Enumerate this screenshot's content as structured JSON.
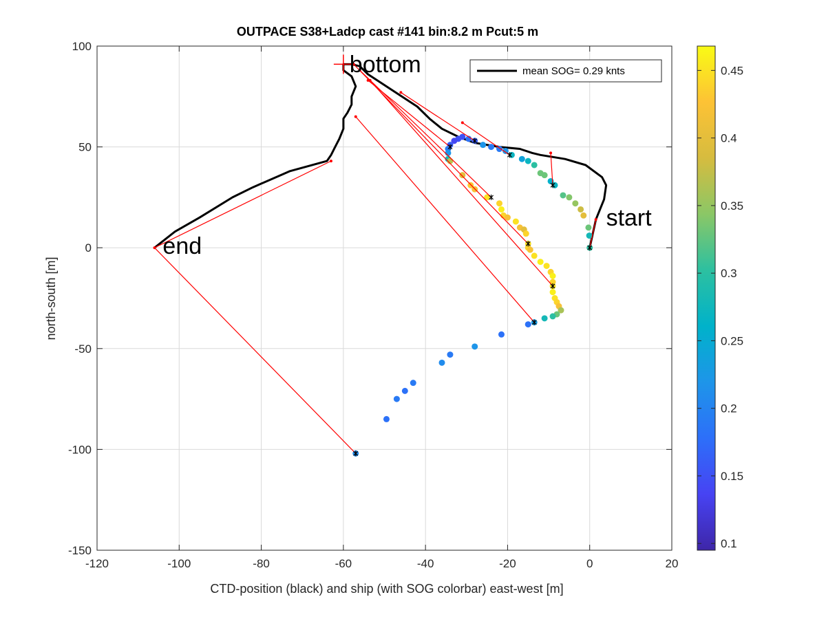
{
  "chart_data": {
    "type": "scatter",
    "title": "OUTPACE S38+Ladcp cast #141 bin:8.2 m  Pcut:5 m",
    "xlabel": "CTD-position (black) and ship (with SOG colorbar) east-west [m]",
    "ylabel": "north-south [m]",
    "xlim": [
      -120,
      20
    ],
    "ylim": [
      -150,
      100
    ],
    "xticks": [
      -120,
      -100,
      -80,
      -60,
      -40,
      -20,
      0,
      20
    ],
    "yticks": [
      -150,
      -100,
      -50,
      0,
      50,
      100
    ],
    "grid": true,
    "legend": {
      "position": "top-right",
      "entries": [
        "mean SOG=  0.29 knts"
      ]
    },
    "annotations": [
      {
        "text": "start",
        "x": 4,
        "y": 11
      },
      {
        "text": "end",
        "x": -104,
        "y": -3
      },
      {
        "text": "bottom",
        "x": -58.5,
        "y": 87
      }
    ],
    "colorbar": {
      "range": [
        0.095,
        0.468
      ],
      "ticks": [
        0.1,
        0.15,
        0.2,
        0.25,
        0.3,
        0.35,
        0.4,
        0.45
      ],
      "tick_labels": [
        "0.1",
        "0.15",
        "0.2",
        "0.25",
        "0.3",
        "0.35",
        "0.4",
        "0.45"
      ],
      "colormap": [
        "#3e26a8",
        "#4743f3",
        "#2d6ff9",
        "#1e95e9",
        "#00b2ca",
        "#2dc0a0",
        "#8bc766",
        "#d6bc3f",
        "#fdc235",
        "#f9fb15"
      ]
    },
    "series": [
      {
        "name": "mean SOG=  0.29 knts",
        "type": "line",
        "color": "#000000",
        "x": [
          0,
          1.5,
          3.5,
          4,
          3,
          -1,
          -6,
          -12,
          -14,
          -17,
          -22,
          -28,
          -32,
          -36,
          -39,
          -42,
          -45,
          -48,
          -51,
          -54,
          -56,
          -58,
          -60,
          -60,
          -58,
          -57,
          -58,
          -58,
          -59,
          -60,
          -60,
          -61,
          -62,
          -63,
          -64,
          -73,
          -82,
          -87,
          -95,
          -101,
          -106
        ],
        "y": [
          0,
          14,
          24,
          31,
          35,
          41,
          44,
          46,
          47,
          49,
          50,
          52,
          55,
          59,
          64,
          70,
          74,
          78,
          82,
          86,
          90,
          91,
          91,
          88,
          85,
          80,
          75,
          71,
          67,
          64,
          59,
          54,
          50,
          46,
          43,
          38,
          30,
          25,
          15,
          8,
          0
        ]
      },
      {
        "name": "ship SOG",
        "type": "scatter",
        "points": [
          [
            0,
            0,
            0.3
          ],
          [
            -0.1,
            6,
            0.28
          ],
          [
            -0.3,
            10,
            0.33
          ],
          [
            -1.5,
            16,
            0.4
          ],
          [
            -2.2,
            19,
            0.38
          ],
          [
            -3.5,
            22,
            0.35
          ],
          [
            -5,
            25,
            0.34
          ],
          [
            -6.5,
            26,
            0.32
          ],
          [
            -8.5,
            31,
            0.27
          ],
          [
            -9.5,
            33,
            0.26
          ],
          [
            -11,
            36,
            0.33
          ],
          [
            -12,
            37,
            0.33
          ],
          [
            -13.5,
            41,
            0.3
          ],
          [
            -15,
            43,
            0.27
          ],
          [
            -16.5,
            44,
            0.24
          ],
          [
            -19,
            46,
            0.27
          ],
          [
            -20.5,
            48,
            0.22
          ],
          [
            -22,
            49,
            0.19
          ],
          [
            -24,
            50,
            0.19
          ],
          [
            -26,
            51,
            0.22
          ],
          [
            -28,
            53,
            0.16
          ],
          [
            -29.5,
            54,
            0.18
          ],
          [
            -31,
            55,
            0.15
          ],
          [
            -32,
            54,
            0.15
          ],
          [
            -33,
            53,
            0.14
          ],
          [
            -34,
            51,
            0.16
          ],
          [
            -34.5,
            49,
            0.19
          ],
          [
            -34.5,
            47,
            0.22
          ],
          [
            -34.5,
            44,
            0.28
          ],
          [
            -34,
            43,
            0.37
          ],
          [
            -31,
            36,
            0.4
          ],
          [
            -29,
            31,
            0.43
          ],
          [
            -28,
            29,
            0.42
          ],
          [
            -25,
            25,
            0.45
          ],
          [
            -22,
            22,
            0.44
          ],
          [
            -21.5,
            19,
            0.46
          ],
          [
            -21,
            16,
            0.44
          ],
          [
            -20,
            15,
            0.42
          ],
          [
            -18,
            13,
            0.45
          ],
          [
            -17,
            10,
            0.42
          ],
          [
            -16,
            9,
            0.4
          ],
          [
            -15.5,
            7,
            0.44
          ],
          [
            -15,
            2,
            0.45
          ],
          [
            -15,
            0,
            0.44
          ],
          [
            -14.5,
            -1,
            0.42
          ],
          [
            -13.5,
            -4,
            0.45
          ],
          [
            -12,
            -7,
            0.46
          ],
          [
            -10.5,
            -9,
            0.45
          ],
          [
            -9.5,
            -12,
            0.44
          ],
          [
            -9,
            -14,
            0.46
          ],
          [
            -9,
            -17,
            0.44
          ],
          [
            -9,
            -19,
            0.45
          ],
          [
            -9,
            -22,
            0.46
          ],
          [
            -8.5,
            -25,
            0.45
          ],
          [
            -8,
            -27,
            0.44
          ],
          [
            -7.5,
            -29,
            0.42
          ],
          [
            -7,
            -31,
            0.36
          ],
          [
            -8,
            -33,
            0.33
          ],
          [
            -9,
            -34,
            0.3
          ],
          [
            -11,
            -35,
            0.28
          ],
          [
            -13.5,
            -37,
            0.23
          ],
          [
            -15,
            -38,
            0.18
          ],
          [
            -21.5,
            -43,
            0.18
          ],
          [
            -28,
            -49,
            0.22
          ],
          [
            -34,
            -53,
            0.19
          ],
          [
            -36,
            -57,
            0.21
          ],
          [
            -43,
            -67,
            0.19
          ],
          [
            -45,
            -71,
            0.18
          ],
          [
            -47,
            -75,
            0.19
          ],
          [
            -49.5,
            -85,
            0.18
          ],
          [
            -57,
            -102,
            0.21
          ]
        ]
      },
      {
        "name": "ship-to-CTD connectors",
        "type": "segments",
        "color": "#ff0000",
        "segments": [
          [
            [
              0,
              0
            ],
            [
              1.5,
              14
            ]
          ],
          [
            [
              -9,
              31
            ],
            [
              -9.5,
              47
            ]
          ],
          [
            [
              -19.5,
              46
            ],
            [
              -31,
              62
            ]
          ],
          [
            [
              -28,
              53
            ],
            [
              -46,
              77
            ]
          ],
          [
            [
              -34,
              50
            ],
            [
              -54,
              83
            ]
          ],
          [
            [
              -24,
              25
            ],
            [
              -56,
              88
            ]
          ],
          [
            [
              -15,
              2
            ],
            [
              -57.5,
              91
            ]
          ],
          [
            [
              -9,
              -19
            ],
            [
              -53.5,
              83
            ]
          ],
          [
            [
              -13.5,
              -37
            ],
            [
              -57,
              65
            ]
          ],
          [
            [
              -57,
              -102
            ],
            [
              -106,
              0
            ]
          ],
          [
            [
              -106,
              0
            ],
            [
              -63,
              43
            ]
          ]
        ]
      },
      {
        "name": "CTD sample markers",
        "type": "scatter",
        "color": "#ff0000",
        "points": [
          [
            1.5,
            14
          ],
          [
            -9.5,
            47
          ],
          [
            -31,
            62
          ],
          [
            -46,
            77
          ],
          [
            -54,
            83
          ],
          [
            -56,
            88
          ],
          [
            -57.5,
            91
          ],
          [
            -53.5,
            83
          ],
          [
            -57,
            65
          ],
          [
            -63,
            43
          ],
          [
            -106,
            0
          ]
        ]
      },
      {
        "name": "ship sample markers",
        "type": "scatter",
        "color": "#000000",
        "points": [
          [
            0,
            0
          ],
          [
            -9,
            31
          ],
          [
            -19.5,
            46
          ],
          [
            -28,
            53
          ],
          [
            -34,
            50
          ],
          [
            -24,
            25
          ],
          [
            -15,
            2
          ],
          [
            -9,
            -19
          ],
          [
            -13.5,
            -37
          ],
          [
            -57,
            -102
          ]
        ]
      },
      {
        "name": "bottom",
        "type": "marker",
        "color": "#ff0000",
        "points": [
          [
            -60,
            91
          ]
        ]
      }
    ]
  }
}
